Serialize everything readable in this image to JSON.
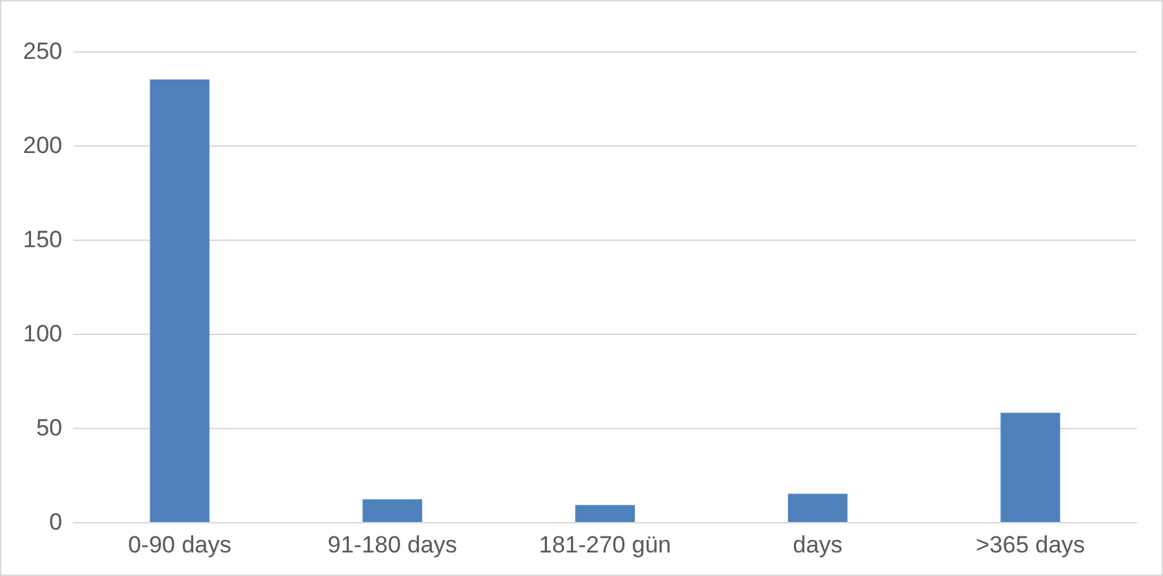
{
  "chart_data": {
    "type": "bar",
    "categories": [
      "0-90 days",
      "91-180 days",
      "181-270 gün",
      "days",
      ">365 days"
    ],
    "values": [
      235,
      12,
      9,
      15,
      58
    ],
    "color": "#4f81bd",
    "ylim": [
      0,
      250
    ],
    "yticks": [
      0,
      50,
      100,
      150,
      200,
      250
    ],
    "grid": "y"
  }
}
